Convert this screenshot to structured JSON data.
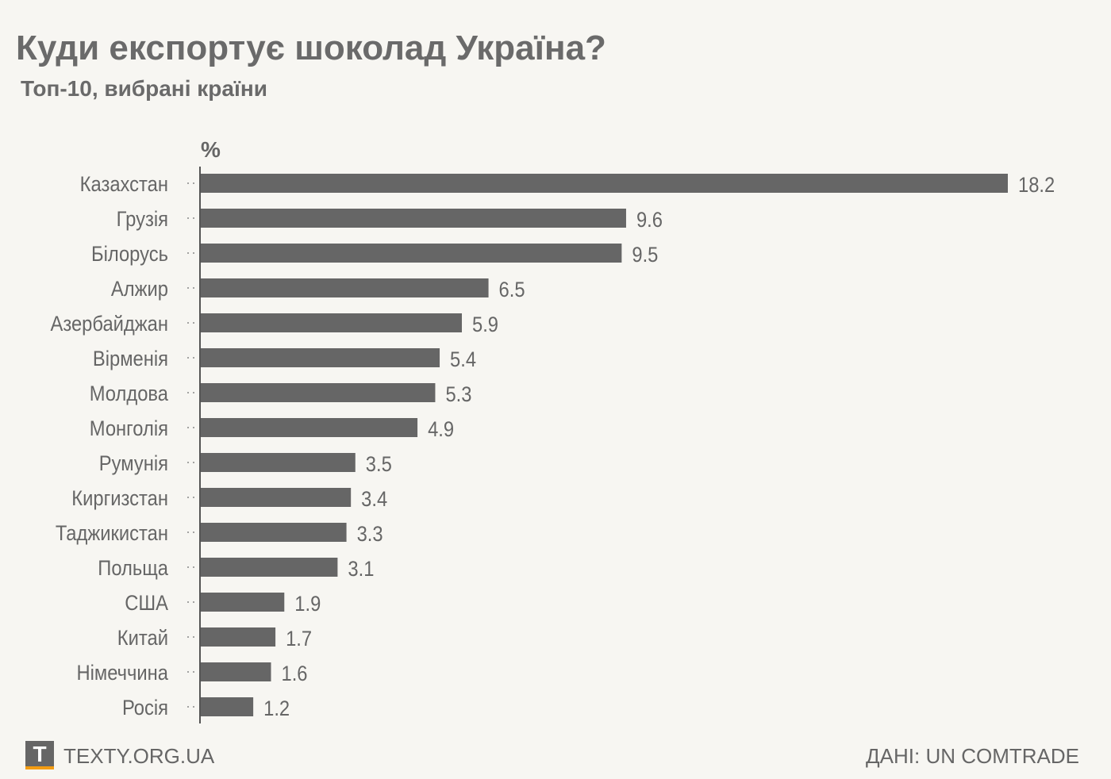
{
  "header": {
    "title": "Куди експортує шоколад Україна?",
    "subtitle": "Топ-10, вибрані країни"
  },
  "footer": {
    "logo_letter": "T",
    "site": "TEXTY.ORG.UA",
    "source": "ДАНІ: UN COMTRADE"
  },
  "colors": {
    "bar": "#666666",
    "background": "#f7f6f2",
    "logo_accent": "#f39c12"
  },
  "chart_data": {
    "type": "bar",
    "orientation": "horizontal",
    "unit_label": "%",
    "categories": [
      "Казахстан",
      "Грузія",
      "Білорусь",
      "Алжир",
      "Азербайджан",
      "Вірменія",
      "Молдова",
      "Монголія",
      "Румунія",
      "Киргизстан",
      "Таджикистан",
      "Польща",
      "США",
      "Китай",
      "Німеччина",
      "Росія"
    ],
    "values": [
      18.2,
      9.6,
      9.5,
      6.5,
      5.9,
      5.4,
      5.3,
      4.9,
      3.5,
      3.4,
      3.3,
      3.1,
      1.9,
      1.7,
      1.6,
      1.2
    ],
    "value_labels": [
      "18.2",
      "9.6",
      "9.5",
      "6.5",
      "5.9",
      "5.4",
      "5.3",
      "4.9",
      "3.5",
      "3.4",
      "3.3",
      "3.1",
      "1.9",
      "1.7",
      "1.6",
      "1.2"
    ],
    "xlim": [
      0,
      18.2
    ],
    "grid": false
  }
}
